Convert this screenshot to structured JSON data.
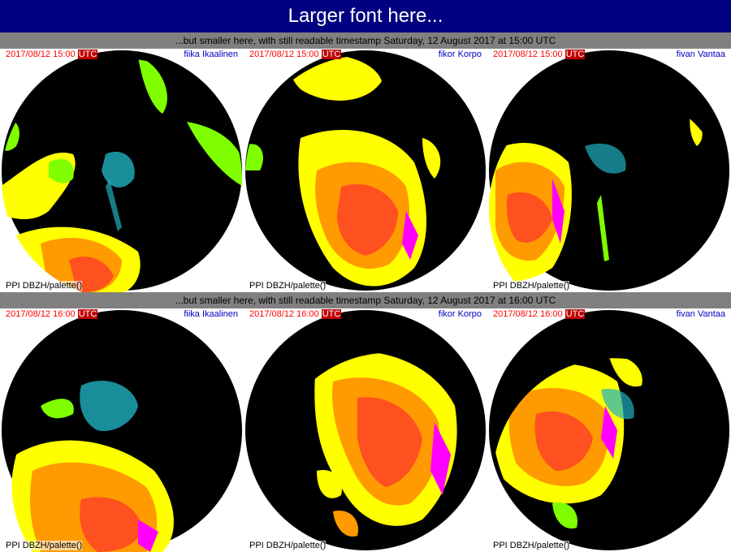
{
  "title": "Larger font here...",
  "rows": [
    {
      "subtitle": "...but smaller here, with still readable timestamp Saturday, 12 August 2017 at 15:00 UTC",
      "panels": [
        {
          "timestamp": "2017/08/12 15:00",
          "utc": "UTC",
          "site": "fiika Ikaalinen",
          "product": "PPI  DBZH/palette()"
        },
        {
          "timestamp": "2017/08/12 15:00",
          "utc": "UTC",
          "site": "fikor Korpo",
          "product": "PPI  DBZH/palette()"
        },
        {
          "timestamp": "2017/08/12 15:00",
          "utc": "UTC",
          "site": "fivan Vantaa",
          "product": "PPI  DBZH/palette()"
        }
      ]
    },
    {
      "subtitle": "...but smaller here, with still readable timestamp Saturday, 12 August 2017 at 16:00 UTC",
      "panels": [
        {
          "timestamp": "2017/08/12 16:00",
          "utc": "UTC",
          "site": "fiika Ikaalinen",
          "product": "PPI  DBZH/palette()"
        },
        {
          "timestamp": "2017/08/12 16:00",
          "utc": "UTC",
          "site": "fikor Korpo",
          "product": "PPI  DBZH/palette()"
        },
        {
          "timestamp": "2017/08/12 16:00",
          "utc": "UTC",
          "site": "fivan Vantaa",
          "product": "PPI  DBZH/palette()"
        }
      ]
    }
  ],
  "colors": {
    "title_bg": "#000080",
    "subtitle_bg": "#808080",
    "timestamp": "#ff0000",
    "site": "#0000c0",
    "radar_background": "#000000",
    "echo_light": "#7fff00",
    "echo_mid": "#ffff00",
    "echo_strong": "#ff6a00",
    "echo_heavy": "#ff3030",
    "echo_extreme": "#ff00ff",
    "clutter": "#20b0c0"
  }
}
